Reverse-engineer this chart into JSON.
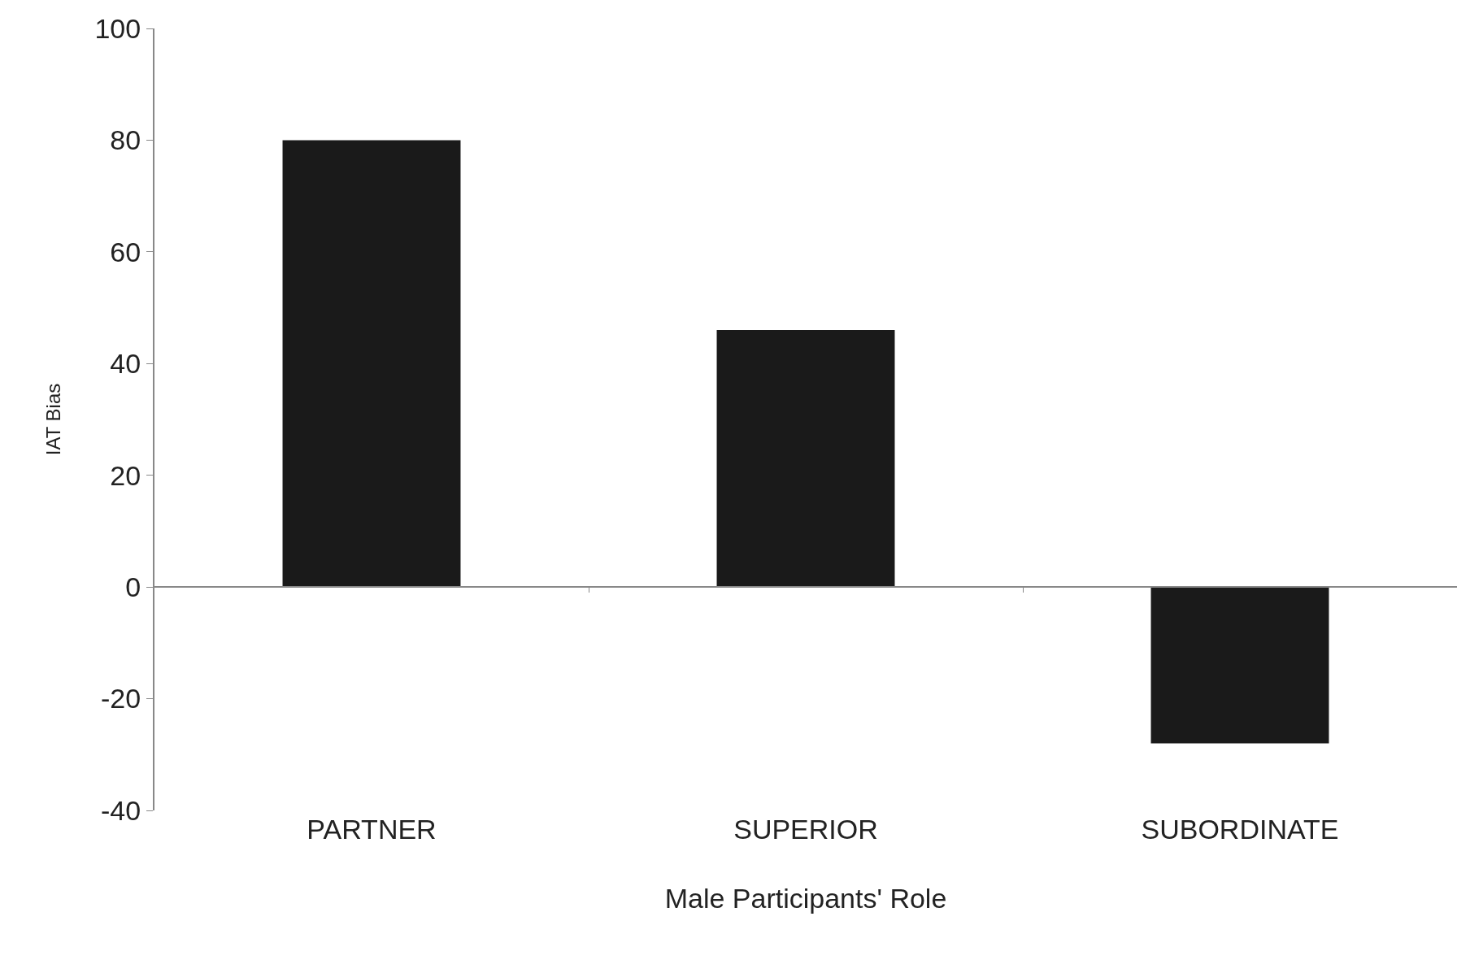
{
  "chart_data": {
    "type": "bar",
    "xlabel": "Male Participants' Role",
    "ylabel": "IAT Bias",
    "categories": [
      "PARTNER",
      "SUPERIOR",
      "SUBORDINATE"
    ],
    "values": [
      80,
      46,
      -28
    ],
    "color": "#1a1a1a",
    "ylim": [
      -40,
      100
    ],
    "yticks": [
      -40,
      -20,
      0,
      20,
      40,
      60,
      80,
      100
    ],
    "legend": false
  }
}
